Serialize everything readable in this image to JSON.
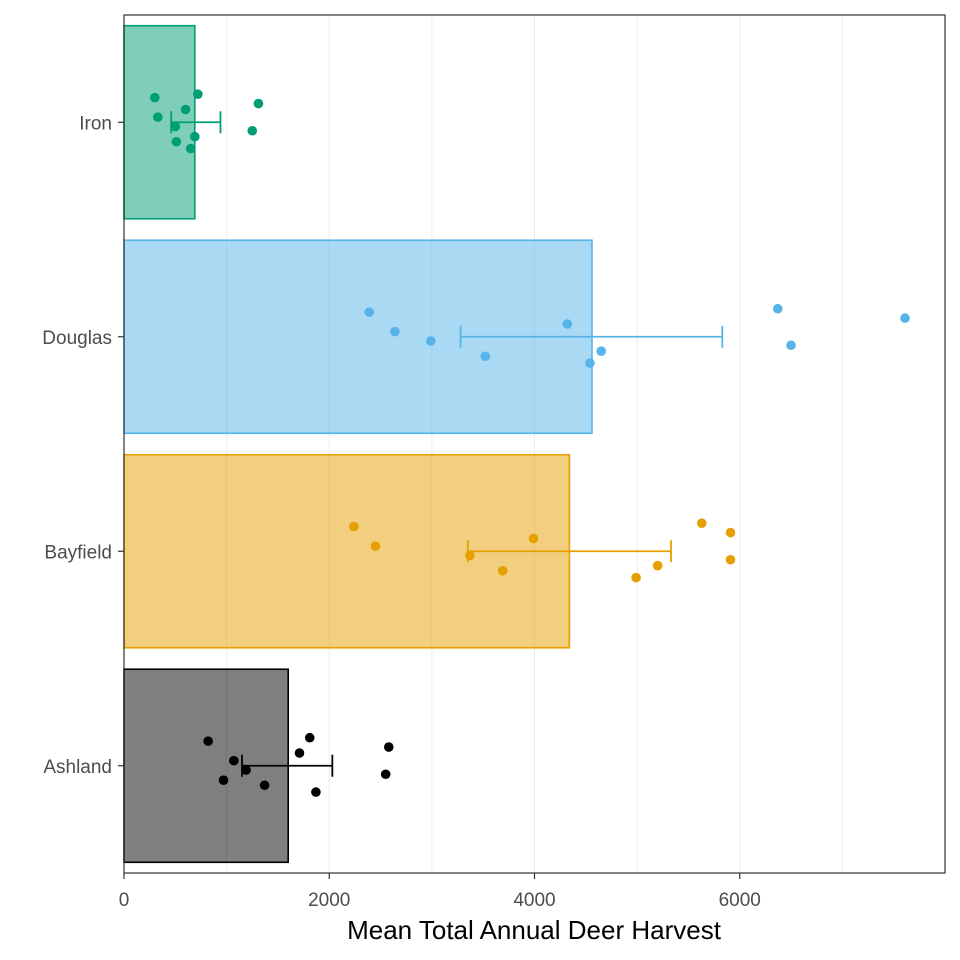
{
  "chart_data": {
    "type": "bar",
    "orientation": "horizontal",
    "title": "",
    "xlabel": "Mean Total Annual Deer Harvest",
    "ylabel": "",
    "xlim": [
      0,
      8000
    ],
    "x_ticks": [
      0,
      2000,
      4000,
      6000
    ],
    "grid": true,
    "legend": "none",
    "categories": [
      "Ashland",
      "Bayfield",
      "Douglas",
      "Iron"
    ],
    "bars": [
      {
        "name": "Ashland",
        "value": 1600,
        "color": "#000000",
        "ci": [
          1150,
          2030
        ],
        "points": [
          820,
          1070,
          1190,
          1370,
          1710,
          1870,
          970,
          1810,
          2550,
          2580
        ]
      },
      {
        "name": "Bayfield",
        "value": 4340,
        "color": "#E69F00",
        "ci": [
          3350,
          5330
        ],
        "points": [
          2240,
          2450,
          3370,
          3690,
          3990,
          4990,
          5200,
          5630,
          5910,
          5910
        ]
      },
      {
        "name": "Douglas",
        "value": 4560,
        "color": "#56B4E9",
        "ci": [
          3280,
          5830
        ],
        "points": [
          2390,
          2640,
          2990,
          3520,
          4320,
          4540,
          4650,
          6370,
          6500,
          7610
        ]
      },
      {
        "name": "Iron",
        "value": 690,
        "color": "#009E73",
        "ci": [
          460,
          940
        ],
        "points": [
          300,
          330,
          500,
          510,
          600,
          650,
          690,
          720,
          1250,
          1310
        ]
      }
    ]
  }
}
